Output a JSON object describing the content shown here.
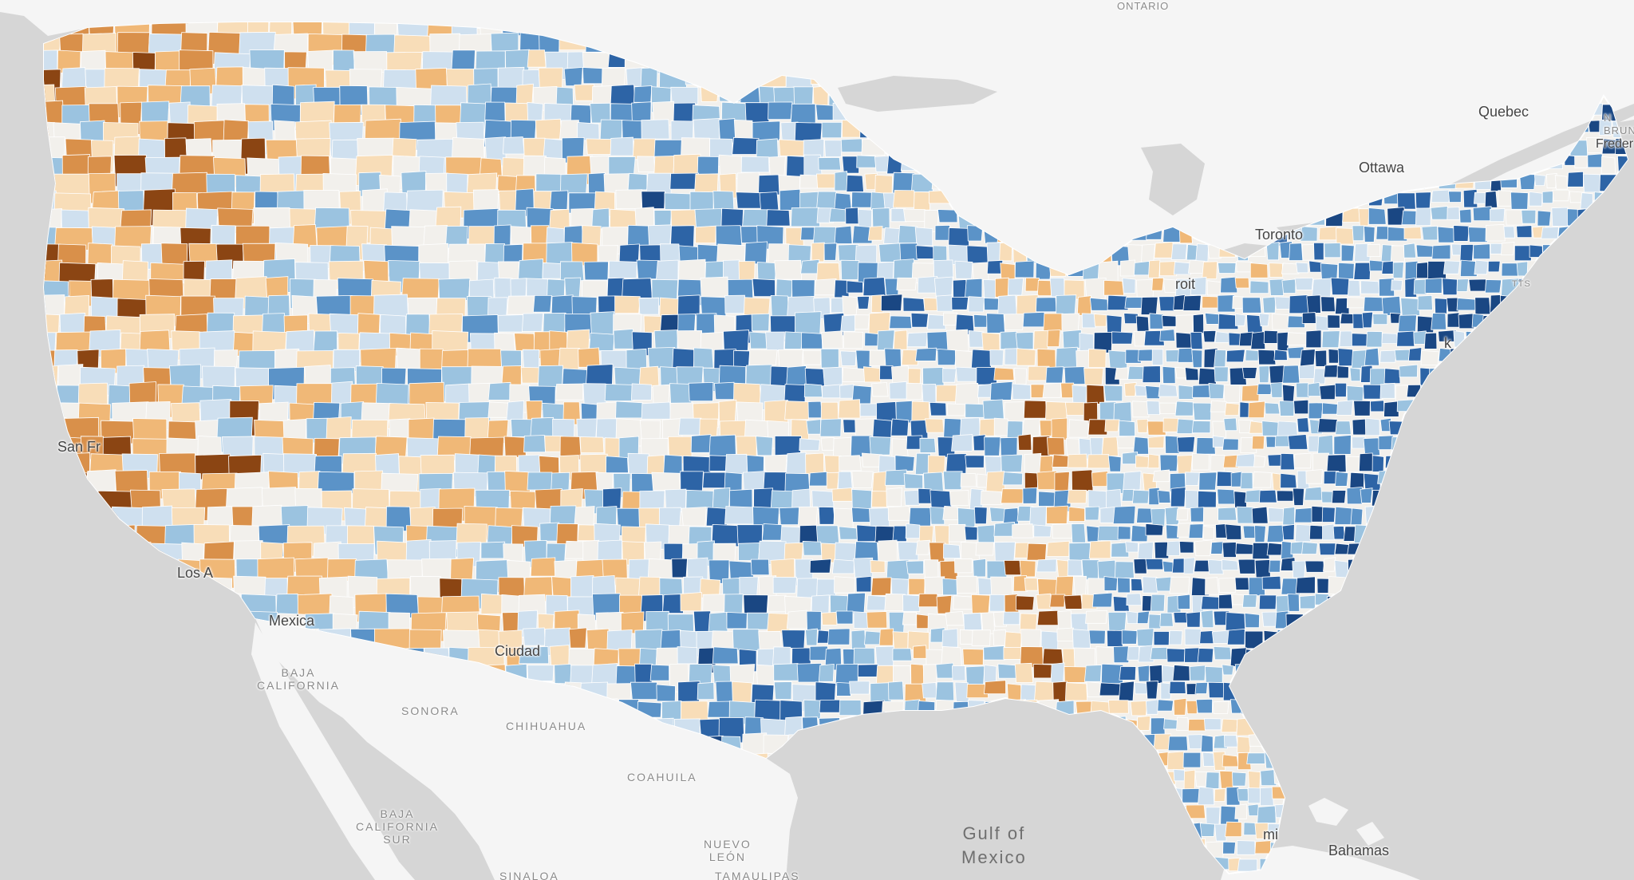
{
  "map": {
    "title": "",
    "type": "choropleth",
    "region": "Contiguous United States counties",
    "colors": {
      "water": "#d6d6d6",
      "land": "#f7f7f7",
      "border": "#ffffff",
      "scale": [
        "#8b4513",
        "#d9904a",
        "#f0b877",
        "#f8ddb8",
        "#f2f0ec",
        "#cfe0ef",
        "#9bc3e0",
        "#5b93c8",
        "#2d64a6",
        "#1a4783"
      ]
    }
  },
  "labels": {
    "ontario": "ONTARIO",
    "quebec": "Quebec",
    "ottawa": "Ottawa",
    "toronto": "Toronto",
    "detroit": "roit",
    "bruns": "N\nBRUN",
    "fredericton": "Freder",
    "mass": "TTS",
    "newyork": "k",
    "sanfran": "San Fr",
    "losangeles": "Los A",
    "mexicali": "Mexica",
    "ciudad": "Ciudad",
    "baja_california": "BAJA\nCALIFORNIA",
    "sonora": "SONORA",
    "chihuahua": "CHIHUAHUA",
    "coahuila": "COAHUILA",
    "baja_sur": "BAJA\nCALIFORNIA\nSUR",
    "nuevo_leon": "NUEVO\nLEÓN",
    "sinaloa": "SINALOA",
    "tamaulipas": "TAMAULIPAS",
    "gulf": "Gulf of\nMexico",
    "miami": "mi",
    "bahamas": "Bahamas"
  }
}
